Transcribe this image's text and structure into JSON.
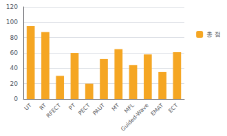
{
  "chart_data": {
    "type": "bar",
    "categories": [
      "UT",
      "RT",
      "RFECT",
      "PT",
      "PECT",
      "PAUT",
      "MT",
      "MFL",
      "Guided-Wave",
      "EMAT",
      "ECT"
    ],
    "series": [
      {
        "name": "총 점",
        "color": "#F5A623",
        "values": [
          95,
          87,
          30,
          60,
          20,
          52,
          65,
          44,
          58,
          35,
          61
        ]
      }
    ],
    "ylim": [
      0,
      120
    ],
    "yticks": [
      0,
      20,
      40,
      60,
      80,
      100,
      120
    ],
    "grid": true,
    "legend": "right"
  }
}
